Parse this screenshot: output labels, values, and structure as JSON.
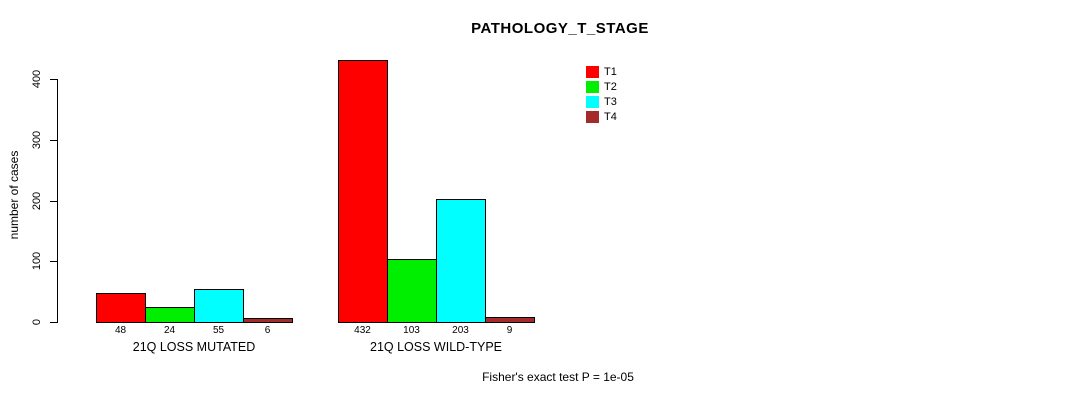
{
  "chart_data": {
    "type": "bar",
    "title": "PATHOLOGY_T_STAGE",
    "ylabel": "number of cases",
    "xlabel": "",
    "ylim": [
      0,
      440
    ],
    "yticks": [
      0,
      100,
      200,
      300,
      400
    ],
    "grid": false,
    "legend_position": "top-right",
    "bar_value_labels_shown": true,
    "categories": [
      "21Q LOSS MUTATED",
      "21Q LOSS WILD-TYPE"
    ],
    "series": [
      {
        "name": "T1",
        "color": "#ff0000",
        "values": [
          48,
          432
        ]
      },
      {
        "name": "T2",
        "color": "#00ee00",
        "values": [
          24,
          103
        ]
      },
      {
        "name": "T3",
        "color": "#00ffff",
        "values": [
          55,
          203
        ]
      },
      {
        "name": "T4",
        "color": "#a52a2a",
        "values": [
          6,
          9
        ]
      }
    ],
    "annotation": "Fisher's exact test P = 1e-05"
  }
}
